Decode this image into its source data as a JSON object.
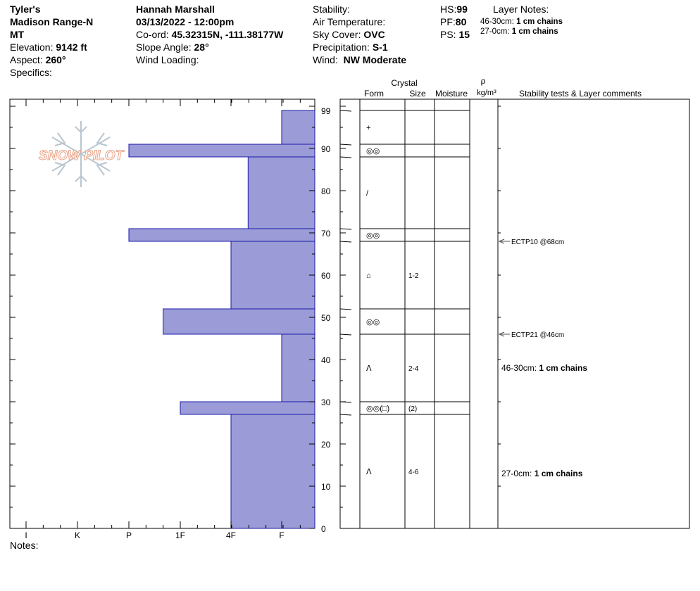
{
  "header": {
    "col1": {
      "location": "Tyler's",
      "range": "Madison Range-N",
      "state": "MT",
      "elevation_label": "Elevation:",
      "elevation_value": "9142 ft",
      "aspect_label": "Aspect:",
      "aspect_value": "260°",
      "specifics_label": "Specifics:"
    },
    "col2": {
      "observer": "Hannah Marshall",
      "datetime": "03/13/2022 - 12:00pm",
      "coord_label": "Co-ord:",
      "coord_value": "45.32315N, -111.38177W",
      "slope_label": "Slope Angle:",
      "slope_value": "28°",
      "wind_loading_label": "Wind Loading:"
    },
    "col3": {
      "stability_label": "Stability:",
      "air_temp_label": "Air Temperature:",
      "sky_label": "Sky Cover:",
      "sky_value": "OVC",
      "precip_label": "Precipitation:",
      "precip_value": "S-1",
      "wind_label": "Wind:",
      "wind_value": "NW Moderate"
    },
    "col4": {
      "hs_label": "HS:",
      "hs_value": "99",
      "pf_label": "PF:",
      "pf_value": "80",
      "ps_label": "PS:",
      "ps_value": "15"
    },
    "layer_notes": {
      "title": "Layer Notes:",
      "line1_range": "46-30cm:",
      "line1_value": "1 cm chains",
      "line2_range": "27-0cm:",
      "line2_value": "1 cm chains"
    }
  },
  "footer": {
    "notes_label": "Notes:"
  },
  "watermark": {
    "text": "SNOW PILOT"
  },
  "table_headers": {
    "crystal": "Crystal",
    "form": "Form",
    "size": "Size",
    "moisture": "Moisture",
    "rho": "ρ",
    "density_unit": "kg/m³",
    "comments": "Stability tests & Layer comments"
  },
  "chart_data": {
    "type": "bar",
    "title": "",
    "xlabel": "",
    "ylabel": "",
    "ylim": [
      0,
      100
    ],
    "hardness_scale": [
      "I",
      "K",
      "P",
      "1F",
      "4F",
      "F"
    ],
    "y_ticks": [
      0,
      10,
      20,
      30,
      40,
      50,
      60,
      70,
      80,
      90,
      99
    ],
    "hs": 99,
    "layers": [
      {
        "top": 99,
        "bottom": 91,
        "hardness": "F",
        "form": "+",
        "size": ""
      },
      {
        "top": 91,
        "bottom": 88,
        "hardness": "P",
        "form": "◎◎",
        "size": ""
      },
      {
        "top": 88,
        "bottom": 71,
        "hardness": "4F+",
        "form": "/",
        "size": ""
      },
      {
        "top": 71,
        "bottom": 68,
        "hardness": "P",
        "form": "◎◎",
        "size": ""
      },
      {
        "top": 68,
        "bottom": 52,
        "hardness": "4F",
        "form": "⌂",
        "size": "1-2"
      },
      {
        "top": 52,
        "bottom": 46,
        "hardness": "1F-",
        "form": "◎◎",
        "size": ""
      },
      {
        "top": 46,
        "bottom": 30,
        "hardness": "F",
        "form": "ᐱ",
        "size": "2-4"
      },
      {
        "top": 30,
        "bottom": 27,
        "hardness": "1F",
        "form": "◎◎(□)",
        "size": "(2)"
      },
      {
        "top": 27,
        "bottom": 0,
        "hardness": "4F",
        "form": "ᐱ",
        "size": "4-6"
      }
    ],
    "tests": [
      {
        "depth": 68,
        "label": "ECTP10 @68cm"
      },
      {
        "depth": 46,
        "label": "ECTP21 @46cm"
      }
    ],
    "layer_comments": [
      {
        "depth": 38,
        "range": "46-30cm:",
        "text": "1 cm chains"
      },
      {
        "depth": 13,
        "range": "27-0cm:",
        "text": "1 cm chains"
      }
    ],
    "colors": {
      "bar_fill": "#9b9bd7",
      "bar_stroke": "#1a1aa8",
      "watermark": "#e9a183"
    }
  }
}
